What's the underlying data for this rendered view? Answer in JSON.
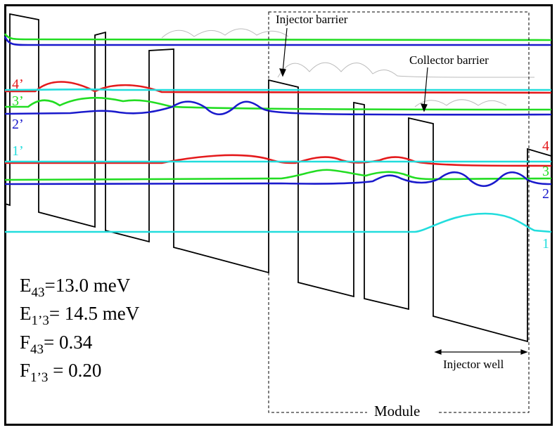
{
  "annotations": {
    "injector_barrier": "Injector barrier",
    "collector_barrier": "Collector barrier",
    "injector_well": "Injector well",
    "module": "Module"
  },
  "level_labels": {
    "l4p": "4’",
    "l3p": "3’",
    "l2p": "2’",
    "l1p": "1’",
    "l4": "4",
    "l3": "3",
    "l2": "2",
    "l1": "1"
  },
  "parameters": [
    {
      "symbol": "E",
      "sub": "43",
      "value": "=13.0 meV"
    },
    {
      "symbol": "E",
      "sub": "1’3",
      "value": "= 14.5 meV"
    },
    {
      "symbol": "F",
      "sub": "43",
      "value": "= 0.34"
    },
    {
      "symbol": "F",
      "sub": "1’3",
      "value": " = 0.20"
    }
  ],
  "colors": {
    "level_4": "#e41a1c",
    "level_3": "#22dd22",
    "level_2": "#1a1acc",
    "level_1": "#22dddd",
    "band": "#000000",
    "ghost": "#bbbbbb"
  }
}
